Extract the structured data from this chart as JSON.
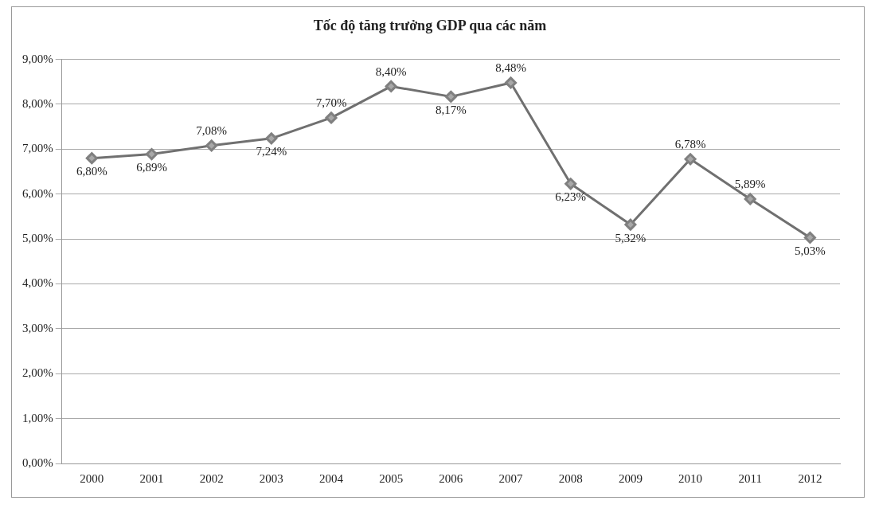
{
  "chart_data": {
    "type": "line",
    "title": "Tốc độ tăng trưởng GDP qua các năm",
    "categories": [
      "2000",
      "2001",
      "2002",
      "2003",
      "2004",
      "2005",
      "2006",
      "2007",
      "2008",
      "2009",
      "2010",
      "2011",
      "2012"
    ],
    "series": [
      {
        "color": "#707070",
        "values": [
          6.8,
          6.89,
          7.08,
          7.24,
          7.7,
          8.4,
          8.17,
          8.48,
          6.23,
          5.32,
          6.78,
          5.89,
          5.03
        ],
        "value_labels": [
          "6,80%",
          "6,89%",
          "7,08%",
          "7,24%",
          "7,70%",
          "8,40%",
          "8,17%",
          "8,48%",
          "6,23%",
          "5,32%",
          "6,78%",
          "5,89%",
          "5,03%"
        ]
      }
    ],
    "ylim": [
      0,
      9
    ],
    "yticks": [
      {
        "value": 0,
        "label": "0,00%"
      },
      {
        "value": 1,
        "label": "1,00%"
      },
      {
        "value": 2,
        "label": "2,00%"
      },
      {
        "value": 3,
        "label": "3,00%"
      },
      {
        "value": 4,
        "label": "4,00%"
      },
      {
        "value": 5,
        "label": "5,00%"
      },
      {
        "value": 6,
        "label": "6,00%"
      },
      {
        "value": 7,
        "label": "7,00%"
      },
      {
        "value": 8,
        "label": "8,00%"
      },
      {
        "value": 9,
        "label": "9,00%"
      }
    ],
    "grid": "y",
    "legend": false,
    "marker": "diamond",
    "line_style": "solid"
  }
}
